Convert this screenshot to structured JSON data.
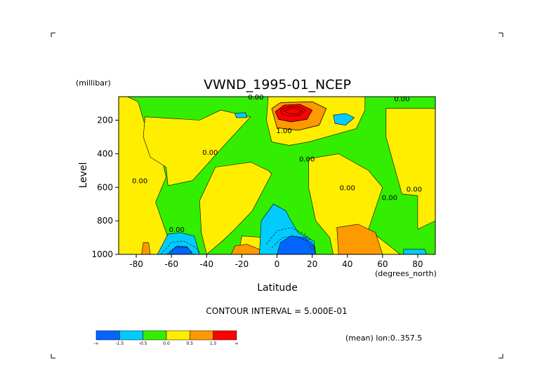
{
  "chart_data": {
    "type": "heatmap",
    "subtype": "filled contour",
    "title": "VWND_1995-01_NCEP",
    "ylabel": "Level",
    "yunit": "(millibar)",
    "xlabel": "Latitude",
    "xunit": "(degrees_north)",
    "xlim": [
      -90,
      90
    ],
    "ylim": [
      1000,
      60
    ],
    "y_inverted": true,
    "x_ticks": [
      "-80",
      "-60",
      "-40",
      "-20",
      "0",
      "20",
      "40",
      "60",
      "80"
    ],
    "x_tick_values": [
      -80,
      -60,
      -40,
      -20,
      0,
      20,
      40,
      60,
      80
    ],
    "y_ticks": [
      "200",
      "400",
      "600",
      "800",
      "1000"
    ],
    "y_tick_values": [
      200,
      400,
      600,
      800,
      1000
    ],
    "contour_interval_text": "CONTOUR INTERVAL = 5.000E-01",
    "mean_text": "(mean) lon:0..357.5",
    "contour_labels": [
      {
        "text": "0.00",
        "lat": -57,
        "lev": 850
      },
      {
        "text": "0.00",
        "lat": -78,
        "lev": 560
      },
      {
        "text": "0.00",
        "lat": -38,
        "lev": 390
      },
      {
        "text": "0.00",
        "lat": -12,
        "lev": 60
      },
      {
        "text": "1.00",
        "lat": 4,
        "lev": 260
      },
      {
        "text": "0.00",
        "lat": 17,
        "lev": 430
      },
      {
        "text": "0.00",
        "lat": 40,
        "lev": 600
      },
      {
        "text": "0.00",
        "lat": 64,
        "lev": 660
      },
      {
        "text": "0.00",
        "lat": 78,
        "lev": 610
      },
      {
        "text": "0.00",
        "lat": 71,
        "lev": 70
      }
    ],
    "colorbar": {
      "colors": [
        "#0066ff",
        "#00ccff",
        "#33ee00",
        "#ffee00",
        "#ff9900",
        "#ff0000"
      ],
      "labels": [
        "-∞",
        "-1.5",
        "-0.5",
        "0.0",
        "0.5",
        "1.5",
        "∞"
      ],
      "level_values": [
        -1.5,
        -0.5,
        0.0,
        0.5,
        1.5
      ]
    },
    "regions": [
      {
        "level": "yellow",
        "color": "#ffee00",
        "points": [
          [
            -85,
            60
          ],
          [
            -79,
            90
          ],
          [
            -73,
            300
          ],
          [
            -66,
            400
          ],
          [
            -63,
            540
          ],
          [
            -69,
            690
          ],
          [
            -62,
            900
          ],
          [
            -57,
            1000
          ],
          [
            -90,
            1000
          ],
          [
            -90,
            60
          ]
        ]
      },
      {
        "level": "yellow",
        "color": "#ffee00",
        "points": [
          [
            -75,
            180
          ],
          [
            -44,
            200
          ],
          [
            -32,
            140
          ],
          [
            -15,
            180
          ],
          [
            -30,
            350
          ],
          [
            -48,
            560
          ],
          [
            -62,
            590
          ],
          [
            -63,
            480
          ],
          [
            -72,
            420
          ],
          [
            -76,
            300
          ]
        ]
      },
      {
        "level": "yellow",
        "color": "#ffee00",
        "points": [
          [
            -35,
            480
          ],
          [
            -15,
            450
          ],
          [
            -5,
            500
          ],
          [
            -3,
            520
          ],
          [
            -14,
            740
          ],
          [
            -24,
            850
          ],
          [
            -31,
            920
          ],
          [
            -40,
            1000
          ],
          [
            -43,
            870
          ],
          [
            -44,
            680
          ]
        ]
      },
      {
        "level": "yellow",
        "color": "#ffee00",
        "points": [
          [
            -5,
            60
          ],
          [
            50,
            60
          ],
          [
            50,
            140
          ],
          [
            45,
            250
          ],
          [
            18,
            330
          ],
          [
            7,
            350
          ],
          [
            -3,
            330
          ],
          [
            -6,
            200
          ]
        ]
      },
      {
        "level": "yellow",
        "color": "#ffee00",
        "points": [
          [
            18,
            430
          ],
          [
            35,
            400
          ],
          [
            52,
            500
          ],
          [
            60,
            600
          ],
          [
            52,
            850
          ],
          [
            70,
            1000
          ],
          [
            32,
            1000
          ],
          [
            30,
            900
          ],
          [
            22,
            800
          ],
          [
            18,
            600
          ]
        ]
      },
      {
        "level": "yellow",
        "color": "#ffee00",
        "points": [
          [
            62,
            130
          ],
          [
            90,
            130
          ],
          [
            90,
            800
          ],
          [
            80,
            850
          ],
          [
            80,
            650
          ],
          [
            71,
            640
          ],
          [
            62,
            300
          ]
        ]
      },
      {
        "level": "yellow",
        "color": "#ffee00",
        "points": [
          [
            -20,
            890
          ],
          [
            -7,
            900
          ],
          [
            -5,
            1000
          ],
          [
            -22,
            1000
          ]
        ]
      },
      {
        "level": "orange",
        "color": "#ff9900",
        "points": [
          [
            -3,
            130
          ],
          [
            2,
            95
          ],
          [
            20,
            90
          ],
          [
            28,
            130
          ],
          [
            24,
            230
          ],
          [
            12,
            260
          ],
          [
            0,
            245
          ]
        ]
      },
      {
        "level": "orange",
        "color": "#ff9900",
        "points": [
          [
            34,
            840
          ],
          [
            46,
            820
          ],
          [
            56,
            870
          ],
          [
            60,
            1000
          ],
          [
            35,
            1000
          ]
        ]
      },
      {
        "level": "orange",
        "color": "#ff9900",
        "points": [
          [
            -24,
            950
          ],
          [
            -17,
            940
          ],
          [
            -10,
            970
          ],
          [
            -9,
            1000
          ],
          [
            -26,
            1000
          ]
        ]
      },
      {
        "level": "orange",
        "color": "#ff9900",
        "points": [
          [
            -76,
            930
          ],
          [
            -73,
            930
          ],
          [
            -72,
            1000
          ],
          [
            -77,
            1000
          ]
        ]
      },
      {
        "level": "red",
        "color": "#ff0000",
        "points": [
          [
            -1,
            150
          ],
          [
            4,
            110
          ],
          [
            13,
            105
          ],
          [
            20,
            140
          ],
          [
            17,
            195
          ],
          [
            8,
            210
          ],
          [
            1,
            195
          ]
        ]
      },
      {
        "level": "cyan",
        "color": "#00ccff",
        "points": [
          [
            -9,
            800
          ],
          [
            -2,
            700
          ],
          [
            5,
            740
          ],
          [
            8,
            800
          ],
          [
            12,
            870
          ],
          [
            21,
            920
          ],
          [
            22,
            1000
          ],
          [
            -10,
            1000
          ]
        ]
      },
      {
        "level": "cyan",
        "color": "#00ccff",
        "points": [
          [
            -68,
            1000
          ],
          [
            -62,
            880
          ],
          [
            -55,
            870
          ],
          [
            -47,
            890
          ],
          [
            -44,
            1000
          ]
        ]
      },
      {
        "level": "cyan",
        "color": "#00ccff",
        "points": [
          [
            32,
            170
          ],
          [
            39,
            160
          ],
          [
            44,
            185
          ],
          [
            39,
            230
          ],
          [
            33,
            220
          ]
        ]
      },
      {
        "level": "cyan",
        "color": "#00ccff",
        "points": [
          [
            -24,
            160
          ],
          [
            -18,
            155
          ],
          [
            -17,
            185
          ],
          [
            -23,
            185
          ]
        ]
      },
      {
        "level": "cyan",
        "color": "#00ccff",
        "points": [
          [
            72,
            970
          ],
          [
            84,
            970
          ],
          [
            85,
            1000
          ],
          [
            72,
            1000
          ]
        ]
      },
      {
        "level": "blue",
        "color": "#0066ff",
        "points": [
          [
            0,
            1000
          ],
          [
            2,
            930
          ],
          [
            8,
            890
          ],
          [
            16,
            900
          ],
          [
            21,
            950
          ],
          [
            22,
            1000
          ]
        ]
      },
      {
        "level": "blue",
        "color": "#0066ff",
        "points": [
          [
            -62,
            1000
          ],
          [
            -57,
            950
          ],
          [
            -51,
            955
          ],
          [
            -48,
            1000
          ]
        ]
      }
    ],
    "contour_lines": [
      {
        "style": "solid",
        "points": [
          [
            2,
            140
          ],
          [
            6,
            120
          ],
          [
            12,
            118
          ],
          [
            16,
            140
          ],
          [
            13,
            170
          ],
          [
            7,
            178
          ],
          [
            3,
            165
          ],
          [
            2,
            140
          ]
        ]
      },
      {
        "style": "solid",
        "points": [
          [
            4,
            145
          ],
          [
            8,
            130
          ],
          [
            11,
            130
          ],
          [
            14,
            145
          ],
          [
            12,
            160
          ],
          [
            7,
            163
          ],
          [
            4,
            145
          ]
        ]
      },
      {
        "style": "solid",
        "points": [
          [
            -1,
            150
          ],
          [
            4,
            110
          ],
          [
            13,
            105
          ],
          [
            20,
            140
          ],
          [
            17,
            195
          ],
          [
            8,
            210
          ],
          [
            1,
            195
          ],
          [
            -1,
            150
          ]
        ]
      },
      {
        "style": "solid",
        "points": [
          [
            -3,
            130
          ],
          [
            2,
            95
          ],
          [
            20,
            90
          ],
          [
            28,
            130
          ],
          [
            24,
            230
          ],
          [
            12,
            260
          ],
          [
            0,
            245
          ],
          [
            -3,
            130
          ]
        ]
      },
      {
        "style": "dashed",
        "points": [
          [
            -6,
            940
          ],
          [
            0,
            860
          ],
          [
            8,
            840
          ],
          [
            16,
            880
          ],
          [
            20,
            930
          ],
          [
            22,
            990
          ]
        ]
      },
      {
        "style": "dashed",
        "points": [
          [
            -3,
            960
          ],
          [
            3,
            900
          ],
          [
            10,
            890
          ],
          [
            17,
            920
          ],
          [
            20,
            970
          ]
        ]
      },
      {
        "style": "dashed",
        "points": [
          [
            -66,
            1000
          ],
          [
            -60,
            930
          ],
          [
            -53,
            920
          ],
          [
            -46,
            960
          ],
          [
            -44,
            1000
          ]
        ]
      },
      {
        "style": "dashed",
        "points": [
          [
            -63,
            1000
          ],
          [
            -58,
            960
          ],
          [
            -51,
            960
          ],
          [
            -47,
            1000
          ]
        ]
      }
    ]
  }
}
